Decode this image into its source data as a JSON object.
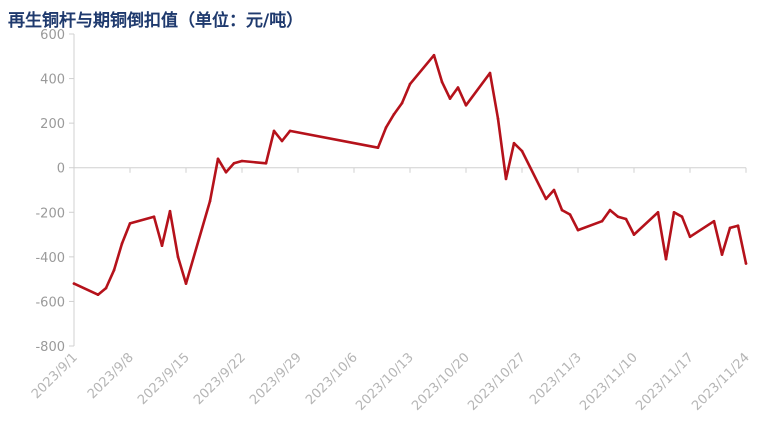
{
  "chart_data": {
    "type": "line",
    "title": "再生铜杆与期铜倒扣值（单位：元/吨）",
    "xlabel": "",
    "ylabel": "",
    "ylim": [
      -800,
      600
    ],
    "yticks": [
      600,
      400,
      200,
      0,
      -200,
      -400,
      -600,
      -800
    ],
    "xticks": [
      "2023/9/1",
      "2023/9/8",
      "2023/9/15",
      "2023/9/22",
      "2023/9/29",
      "2023/10/6",
      "2023/10/13",
      "2023/10/20",
      "2023/10/27",
      "2023/11/3",
      "2023/11/10",
      "2023/11/17",
      "2023/11/24"
    ],
    "x_start": "2023/9/1",
    "x_end": "2023/11/24",
    "grid": false,
    "legend": "none",
    "line_color": "#b5121b",
    "series": [
      {
        "x": [
          "2023/9/1",
          "2023/9/4",
          "2023/9/5",
          "2023/9/6",
          "2023/9/7",
          "2023/9/8",
          "2023/9/11",
          "2023/9/12",
          "2023/9/13",
          "2023/9/14",
          "2023/9/15",
          "2023/9/18",
          "2023/9/19",
          "2023/9/20",
          "2023/9/21",
          "2023/9/22",
          "2023/9/25",
          "2023/9/26",
          "2023/9/27",
          "2023/9/28",
          "2023/10/9",
          "2023/10/10",
          "2023/10/11",
          "2023/10/12",
          "2023/10/13",
          "2023/10/16",
          "2023/10/17",
          "2023/10/18",
          "2023/10/19",
          "2023/10/20",
          "2023/10/23",
          "2023/10/24",
          "2023/10/25",
          "2023/10/26",
          "2023/10/27",
          "2023/10/30",
          "2023/10/31",
          "2023/11/1",
          "2023/11/2",
          "2023/11/3",
          "2023/11/6",
          "2023/11/7",
          "2023/11/8",
          "2023/11/9",
          "2023/11/10",
          "2023/11/13",
          "2023/11/14",
          "2023/11/15",
          "2023/11/16",
          "2023/11/17",
          "2023/11/20",
          "2023/11/21",
          "2023/11/22",
          "2023/11/23",
          "2023/11/24"
        ],
        "values": [
          -520,
          -570,
          -540,
          -460,
          -340,
          -250,
          -220,
          -350,
          -195,
          -400,
          -520,
          -150,
          40,
          -20,
          20,
          30,
          20,
          165,
          120,
          165,
          90,
          180,
          240,
          290,
          375,
          505,
          385,
          310,
          360,
          280,
          425,
          220,
          -50,
          110,
          75,
          -140,
          -100,
          -190,
          -210,
          -280,
          -240,
          -190,
          -220,
          -230,
          -300,
          -200,
          -410,
          -200,
          -220,
          -310,
          -240,
          -390,
          -270,
          -260,
          -430
        ]
      }
    ]
  }
}
